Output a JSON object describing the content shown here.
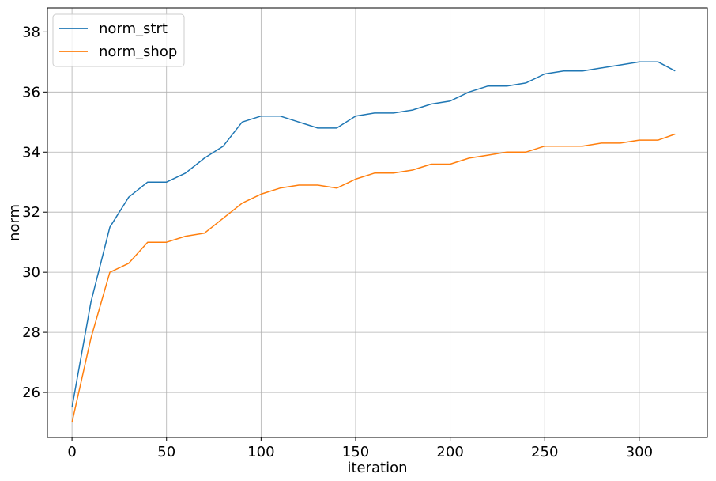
{
  "chart_data": {
    "type": "line",
    "xlabel": "iteration",
    "ylabel": "norm",
    "xlim": [
      -13,
      336
    ],
    "ylim": [
      24.5,
      38.8
    ],
    "x_ticks": [
      0,
      50,
      100,
      150,
      200,
      250,
      300
    ],
    "y_ticks": [
      26,
      28,
      30,
      32,
      34,
      36,
      38
    ],
    "grid": true,
    "legend_position": "top-left",
    "series": [
      {
        "name": "norm_strt",
        "color": "#1f77b4",
        "x": [
          0,
          10,
          20,
          30,
          40,
          50,
          60,
          70,
          80,
          90,
          100,
          110,
          120,
          130,
          140,
          150,
          160,
          170,
          180,
          190,
          200,
          210,
          220,
          230,
          240,
          250,
          260,
          270,
          280,
          290,
          300,
          310,
          319
        ],
        "values": [
          25.5,
          29.0,
          31.5,
          32.5,
          33.0,
          33.0,
          33.3,
          33.8,
          34.2,
          35.0,
          35.2,
          35.2,
          35.0,
          34.8,
          34.8,
          35.2,
          35.3,
          35.3,
          35.4,
          35.6,
          35.7,
          36.0,
          36.2,
          36.2,
          36.3,
          36.6,
          36.7,
          36.7,
          36.8,
          36.9,
          37.0,
          37.0,
          36.7
        ]
      },
      {
        "name": "norm_shop",
        "color": "#ff7f0e",
        "x": [
          0,
          10,
          20,
          30,
          40,
          50,
          60,
          70,
          80,
          90,
          100,
          110,
          120,
          130,
          140,
          150,
          160,
          170,
          180,
          190,
          200,
          210,
          220,
          230,
          240,
          250,
          260,
          270,
          280,
          290,
          300,
          310,
          319
        ],
        "values": [
          25.0,
          27.8,
          30.0,
          30.3,
          31.0,
          31.0,
          31.2,
          31.3,
          31.8,
          32.3,
          32.6,
          32.8,
          32.9,
          32.9,
          32.8,
          33.1,
          33.3,
          33.3,
          33.4,
          33.6,
          33.6,
          33.8,
          33.9,
          34.0,
          34.0,
          34.2,
          34.2,
          34.2,
          34.3,
          34.3,
          34.4,
          34.4,
          34.6
        ]
      }
    ]
  }
}
